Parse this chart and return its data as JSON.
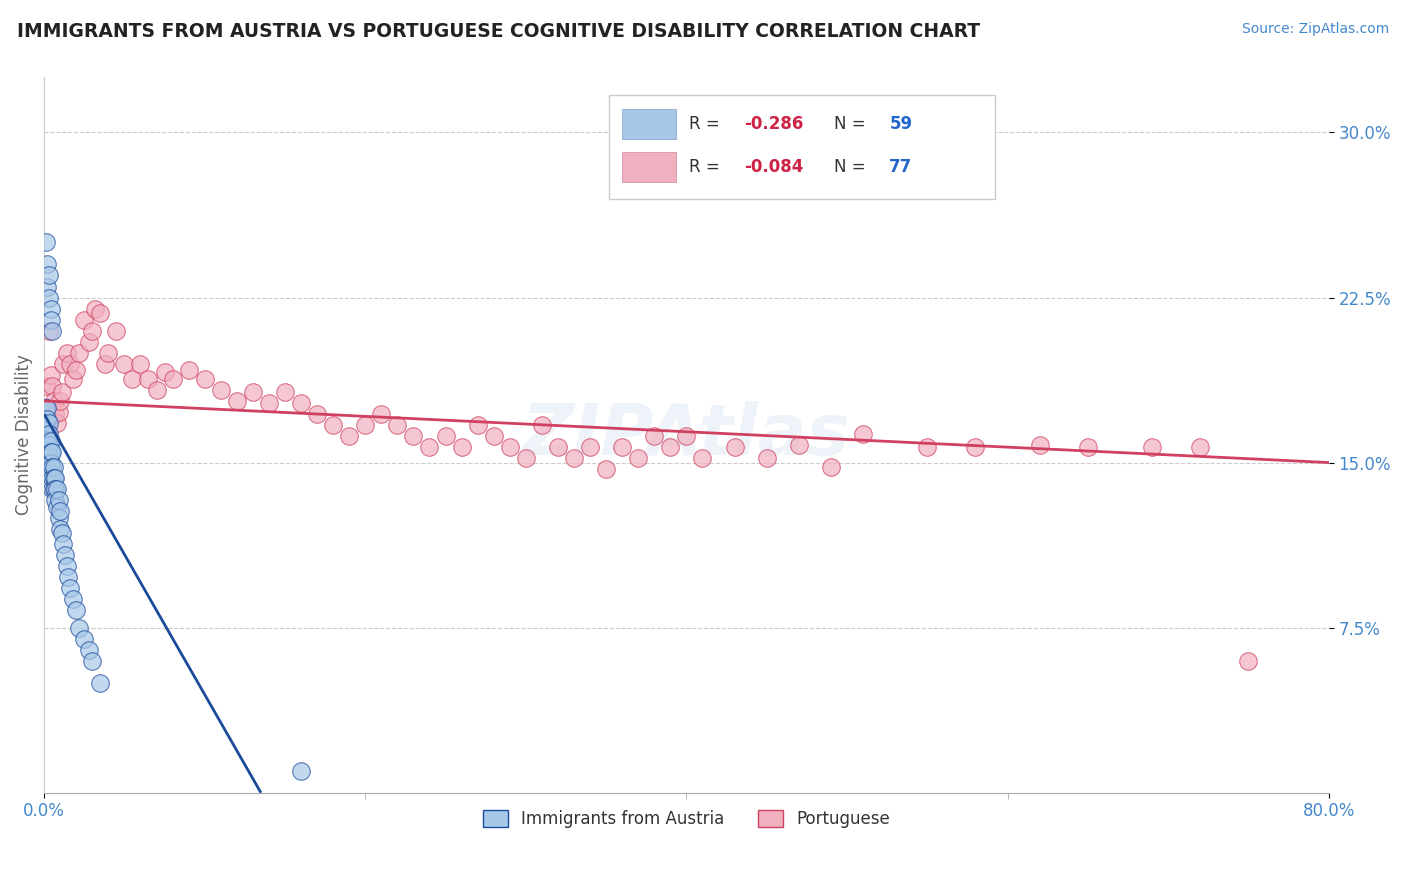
{
  "title": "IMMIGRANTS FROM AUSTRIA VS PORTUGUESE COGNITIVE DISABILITY CORRELATION CHART",
  "source": "Source: ZipAtlas.com",
  "ylabel": "Cognitive Disability",
  "yticks": [
    "7.5%",
    "15.0%",
    "22.5%",
    "30.0%"
  ],
  "ytick_values": [
    0.075,
    0.15,
    0.225,
    0.3
  ],
  "xlim": [
    0.0,
    0.8
  ],
  "ylim": [
    0.0,
    0.325
  ],
  "legend_r1": "-0.286",
  "legend_n1": "59",
  "legend_r2": "-0.084",
  "legend_n2": "77",
  "label1": "Immigrants from Austria",
  "label2": "Portuguese",
  "color1": "#a8c8e8",
  "color2": "#f0b0c0",
  "line_color1": "#1a4a9a",
  "line_color2": "#d04060",
  "background_color": "#ffffff",
  "blue_scatter_x": [
    0.001,
    0.001,
    0.001,
    0.001,
    0.001,
    0.002,
    0.002,
    0.002,
    0.002,
    0.002,
    0.002,
    0.003,
    0.003,
    0.003,
    0.003,
    0.003,
    0.003,
    0.004,
    0.004,
    0.004,
    0.004,
    0.005,
    0.005,
    0.005,
    0.005,
    0.006,
    0.006,
    0.006,
    0.007,
    0.007,
    0.007,
    0.008,
    0.008,
    0.009,
    0.009,
    0.01,
    0.01,
    0.011,
    0.012,
    0.013,
    0.014,
    0.015,
    0.016,
    0.018,
    0.02,
    0.022,
    0.025,
    0.028,
    0.03,
    0.035,
    0.001,
    0.002,
    0.002,
    0.003,
    0.003,
    0.004,
    0.004,
    0.005,
    0.16
  ],
  "blue_scatter_y": [
    0.165,
    0.17,
    0.175,
    0.16,
    0.155,
    0.165,
    0.175,
    0.17,
    0.16,
    0.155,
    0.15,
    0.16,
    0.168,
    0.163,
    0.158,
    0.153,
    0.148,
    0.16,
    0.155,
    0.15,
    0.145,
    0.155,
    0.148,
    0.143,
    0.138,
    0.148,
    0.143,
    0.138,
    0.143,
    0.138,
    0.133,
    0.138,
    0.13,
    0.133,
    0.125,
    0.128,
    0.12,
    0.118,
    0.113,
    0.108,
    0.103,
    0.098,
    0.093,
    0.088,
    0.083,
    0.075,
    0.07,
    0.065,
    0.06,
    0.05,
    0.25,
    0.24,
    0.23,
    0.235,
    0.225,
    0.22,
    0.215,
    0.21,
    0.01
  ],
  "pink_scatter_x": [
    0.001,
    0.002,
    0.003,
    0.004,
    0.005,
    0.006,
    0.007,
    0.008,
    0.009,
    0.01,
    0.011,
    0.012,
    0.014,
    0.016,
    0.018,
    0.02,
    0.022,
    0.025,
    0.028,
    0.03,
    0.032,
    0.035,
    0.038,
    0.04,
    0.045,
    0.05,
    0.055,
    0.06,
    0.065,
    0.07,
    0.075,
    0.08,
    0.09,
    0.1,
    0.11,
    0.12,
    0.13,
    0.14,
    0.15,
    0.16,
    0.17,
    0.18,
    0.19,
    0.2,
    0.21,
    0.22,
    0.23,
    0.24,
    0.25,
    0.26,
    0.27,
    0.28,
    0.29,
    0.3,
    0.31,
    0.32,
    0.33,
    0.34,
    0.35,
    0.36,
    0.37,
    0.38,
    0.39,
    0.4,
    0.41,
    0.43,
    0.45,
    0.47,
    0.49,
    0.51,
    0.55,
    0.58,
    0.62,
    0.65,
    0.69,
    0.72,
    0.75
  ],
  "pink_scatter_y": [
    0.185,
    0.175,
    0.21,
    0.19,
    0.185,
    0.178,
    0.172,
    0.168,
    0.173,
    0.178,
    0.182,
    0.195,
    0.2,
    0.195,
    0.188,
    0.192,
    0.2,
    0.215,
    0.205,
    0.21,
    0.22,
    0.218,
    0.195,
    0.2,
    0.21,
    0.195,
    0.188,
    0.195,
    0.188,
    0.183,
    0.191,
    0.188,
    0.192,
    0.188,
    0.183,
    0.178,
    0.182,
    0.177,
    0.182,
    0.177,
    0.172,
    0.167,
    0.162,
    0.167,
    0.172,
    0.167,
    0.162,
    0.157,
    0.162,
    0.157,
    0.167,
    0.162,
    0.157,
    0.152,
    0.167,
    0.157,
    0.152,
    0.157,
    0.147,
    0.157,
    0.152,
    0.162,
    0.157,
    0.162,
    0.152,
    0.157,
    0.152,
    0.158,
    0.148,
    0.163,
    0.157,
    0.157,
    0.158,
    0.157,
    0.157,
    0.157,
    0.06
  ],
  "blue_line_x0": 0.0,
  "blue_line_y0": 0.172,
  "blue_line_x1": 0.135,
  "blue_line_y1": 0.0,
  "pink_line_x0": 0.0,
  "pink_line_y0": 0.178,
  "pink_line_x1": 0.8,
  "pink_line_y1": 0.15
}
